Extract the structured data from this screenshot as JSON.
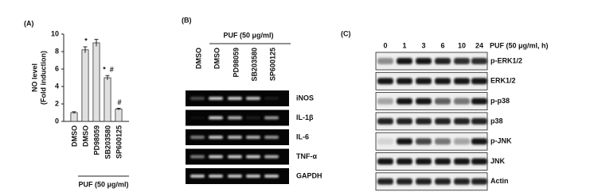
{
  "chart_data": {
    "type": "bar",
    "panel_label": "(A)",
    "ylabel": [
      "NO level",
      "(Fold induction)"
    ],
    "categories": [
      "DMSO",
      "DMSO",
      "PD98059",
      "SB203580",
      "SP600125"
    ],
    "values": [
      1,
      8.2,
      9,
      5,
      1.4
    ],
    "errors": [
      0.1,
      0.35,
      0.4,
      0.25,
      0.1
    ],
    "bar_labels": [
      null,
      "*",
      null,
      "*  #",
      "#"
    ],
    "group_label": "PUF (50 μg/ml)",
    "color": "#e0e0e0",
    "edge_color": "#333333",
    "ylim": [
      0,
      10
    ],
    "yticks": [
      0,
      2,
      4,
      6,
      8,
      10
    ]
  },
  "panel_b": {
    "label": "(B)",
    "treatment": "PUF (50 μg/ml)",
    "lanes": [
      "DMSO",
      "DMSO",
      "PD98059",
      "SB203580",
      "SP600125"
    ],
    "rows": [
      "iNOS",
      "IL-1β",
      "IL-6",
      "TNF-α",
      "GAPDH"
    ]
  },
  "panel_c": {
    "label": "(C)",
    "treatment": "PUF (50 μg/ml, h)",
    "timepoints": [
      "0",
      "1",
      "3",
      "6",
      "10",
      "24"
    ],
    "rows": [
      "p-ERK1/2",
      "ERK1/2",
      "p-p38",
      "p38",
      "p-JNK",
      "JNK",
      "Actin"
    ]
  }
}
